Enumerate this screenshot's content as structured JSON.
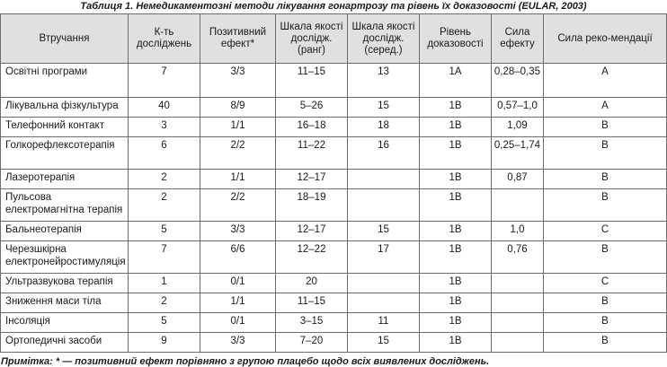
{
  "caption": "Таблиця 1. Немедикаментозні методи лікування гонартрозу та рівень їх доказовості (EULAR, 2003)",
  "table": {
    "headers": [
      "Втручання",
      "К-ть досліджень",
      "Позитивний ефект*",
      "Шкала якості дослідж. (ранг)",
      "Шкала якості дослідж. (серед.)",
      "Рівень доказовості",
      "Сила ефекту",
      "Сила реко-мендації"
    ],
    "rows": [
      [
        "Освітні програми",
        "7",
        "3/3",
        "11–15",
        "13",
        "1A",
        "0,28–0,35",
        "A"
      ],
      [
        "Лікувальна фізкультура",
        "40",
        "8/9",
        "5–26",
        "15",
        "1B",
        "0,57–1,0",
        "A"
      ],
      [
        "Телефонний контакт",
        "3",
        "1/1",
        "16–18",
        "18",
        "1B",
        "1,09",
        "B"
      ],
      [
        "Голкорефлексотерапія",
        "6",
        "2/2",
        "11–22",
        "16",
        "1B",
        "0,25–1,74",
        "B"
      ],
      [
        "Лазеротерапія",
        "2",
        "1/1",
        "12–17",
        "",
        "1B",
        "0,87",
        "B"
      ],
      [
        "Пульсова електромагнітна терапія",
        "2",
        "2/2",
        "18–19",
        "",
        "1B",
        "",
        "B"
      ],
      [
        "Бальнеотерапія",
        "5",
        "3/3",
        "12–17",
        "15",
        "1B",
        "1,0",
        "C"
      ],
      [
        "Черезшкірна електронейростимуляція",
        "7",
        "6/6",
        "12–22",
        "17",
        "1B",
        "0,76",
        "B"
      ],
      [
        "Ультразвукова терапія",
        "1",
        "0/1",
        "20",
        "",
        "1B",
        "",
        "C"
      ],
      [
        "Зниження маси тіла",
        "2",
        "1/1",
        "11–15",
        "",
        "1B",
        "",
        "B"
      ],
      [
        "Інсоляція",
        "5",
        "0/1",
        "3–15",
        "11",
        "1B",
        "",
        "B"
      ],
      [
        "Ортопедичні засоби",
        "9",
        "3/3",
        "7–20",
        "15",
        "1B",
        "",
        "B"
      ]
    ]
  },
  "note": "Примітка: * — позитивний ефект порівняно з групою плацебо щодо всіх виявлених досліджень."
}
